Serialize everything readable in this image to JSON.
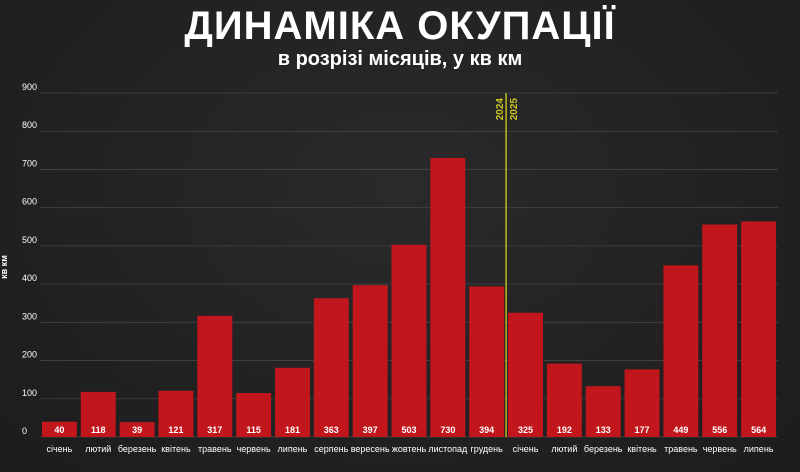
{
  "header": {
    "title": "ДИНАМІКА ОКУПАЦІЇ",
    "subtitle": "в розрізі місяців, у кв км"
  },
  "chart_data": {
    "type": "bar",
    "title": "ДИНАМІКА ОКУПАЦІЇ",
    "subtitle": "в розрізі місяців, у кв км",
    "xlabel": "",
    "ylabel": "кв км",
    "ylim": [
      0,
      900
    ],
    "yticks": [
      0,
      100,
      200,
      300,
      400,
      500,
      600,
      700,
      800,
      900
    ],
    "grid": true,
    "categories": [
      "січень",
      "лютий",
      "березень",
      "квітень",
      "травень",
      "червень",
      "липень",
      "серпень",
      "вересень",
      "жовтень",
      "листопад",
      "грудень",
      "січень",
      "лютий",
      "березень",
      "квітень",
      "травень",
      "червень",
      "липень"
    ],
    "values": [
      40,
      118,
      39,
      121,
      317,
      115,
      181,
      363,
      397,
      503,
      730,
      394,
      325,
      192,
      133,
      177,
      449,
      556,
      564
    ],
    "divider": {
      "after_index": 11,
      "label_left": "2024",
      "label_right": "2025"
    },
    "colors": {
      "bar": "#c1161c",
      "divider": "#c9c41e",
      "grid": "#444444"
    }
  }
}
